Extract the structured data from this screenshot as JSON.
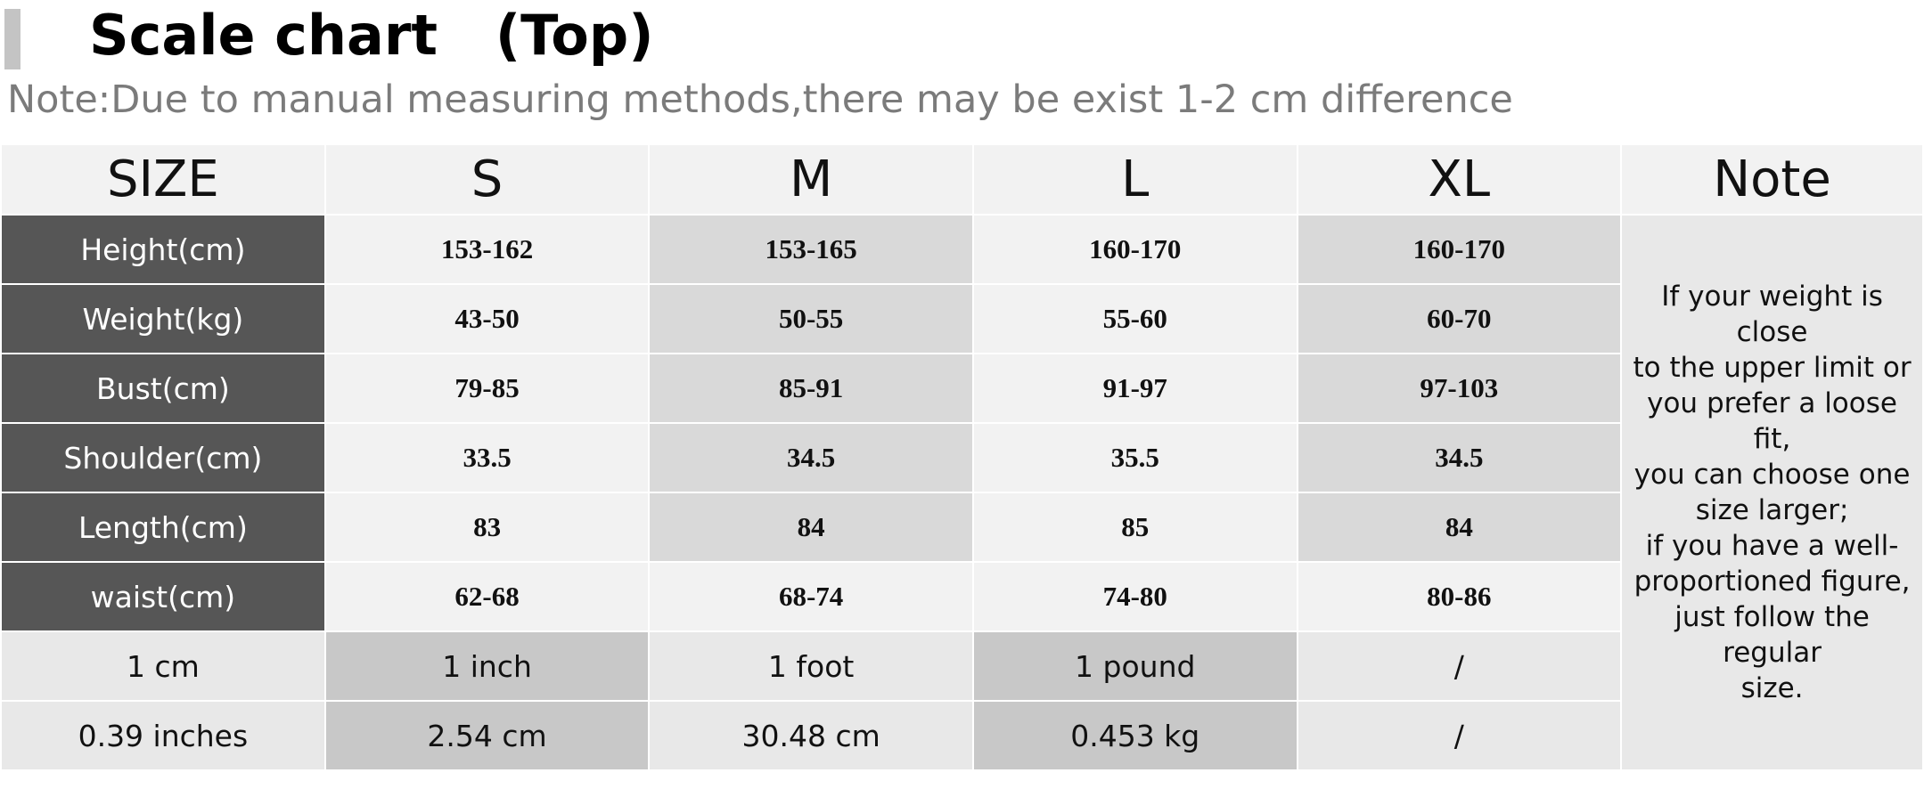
{
  "header": {
    "title": "Scale chart   (Top)",
    "note": "Note:Due to manual measuring methods,there may be exist 1-2 cm difference"
  },
  "table": {
    "columns": [
      "SIZE",
      "S",
      "M",
      "L",
      "XL",
      "Note"
    ],
    "rows": [
      {
        "label": "Height(cm)",
        "values": [
          "153-162",
          "153-165",
          "160-170",
          "160-170"
        ]
      },
      {
        "label": "Weight(kg)",
        "values": [
          "43-50",
          "50-55",
          "55-60",
          "60-70"
        ]
      },
      {
        "label": "Bust(cm)",
        "values": [
          "79-85",
          "85-91",
          "91-97",
          "97-103"
        ]
      },
      {
        "label": "Shoulder(cm)",
        "values": [
          "33.5",
          "34.5",
          "35.5",
          "34.5"
        ]
      },
      {
        "label": "Length(cm)",
        "values": [
          "83",
          "84",
          "85",
          "84"
        ]
      },
      {
        "label": "waist(cm)",
        "values": [
          "62-68",
          "68-74",
          "74-80",
          "80-86"
        ]
      }
    ],
    "conversion_rows": [
      [
        "1 cm",
        "1 inch",
        "1 foot",
        "1 pound",
        "/"
      ],
      [
        "0.39 inches",
        "2.54 cm",
        "30.48 cm",
        "0.453 kg",
        "/"
      ]
    ],
    "note_lines": [
      "If your weight is close",
      "to the upper limit or",
      "you prefer a loose fit,",
      "you can choose one",
      "size larger;",
      "if you have a well-",
      "proportioned figure,",
      "just follow the regular",
      "size."
    ]
  }
}
